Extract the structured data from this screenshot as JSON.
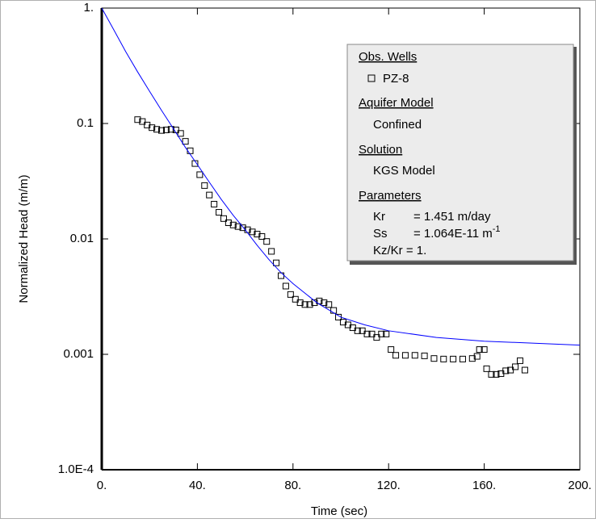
{
  "chart_data": {
    "type": "scatter",
    "xlabel": "Time (sec)",
    "ylabel": "Normalized Head (m/m)",
    "xlim": [
      0,
      200
    ],
    "xticks": [
      {
        "value": 0,
        "label": "0."
      },
      {
        "value": 40,
        "label": "40."
      },
      {
        "value": 80,
        "label": "80."
      },
      {
        "value": 120,
        "label": "120."
      },
      {
        "value": 160,
        "label": "160."
      },
      {
        "value": 200,
        "label": "200."
      }
    ],
    "ylim": [
      0.0001,
      1
    ],
    "yticks": [
      {
        "value": 0.0001,
        "label": "1.0E-4"
      },
      0.001,
      0.01,
      0.1,
      {
        "value": 1,
        "label": "1."
      }
    ],
    "log_y": true,
    "series": [
      {
        "name": "PZ-8",
        "color": "#000000",
        "marker": "square",
        "x": [
          15,
          17,
          19,
          21,
          23,
          25,
          27,
          29,
          31,
          33,
          35,
          37,
          39,
          41,
          43,
          45,
          47,
          49,
          51,
          53,
          55,
          57,
          59,
          61,
          63,
          65,
          67,
          69,
          71,
          73,
          75,
          77,
          79,
          81,
          83,
          85,
          87,
          89,
          91,
          93,
          95,
          97,
          99,
          101,
          103,
          105,
          107,
          109,
          111,
          113,
          115,
          117,
          119,
          121,
          123,
          127,
          131,
          135,
          139,
          143,
          147,
          151,
          155,
          157,
          158,
          160,
          161,
          163,
          165,
          167,
          169,
          171,
          173,
          175,
          177
        ],
        "values": [
          0.108,
          0.104,
          0.097,
          0.092,
          0.089,
          0.087,
          0.088,
          0.089,
          0.088,
          0.082,
          0.07,
          0.058,
          0.045,
          0.036,
          0.029,
          0.024,
          0.02,
          0.017,
          0.015,
          0.0138,
          0.0132,
          0.0128,
          0.0125,
          0.012,
          0.0115,
          0.011,
          0.0105,
          0.0095,
          0.0078,
          0.0062,
          0.0048,
          0.0039,
          0.0033,
          0.003,
          0.0028,
          0.0027,
          0.0027,
          0.0028,
          0.0029,
          0.0028,
          0.0027,
          0.0024,
          0.0021,
          0.0019,
          0.0018,
          0.0017,
          0.0016,
          0.0016,
          0.0015,
          0.0015,
          0.0014,
          0.0015,
          0.0015,
          0.0011,
          0.00098,
          0.00098,
          0.00098,
          0.00097,
          0.00092,
          0.00091,
          0.00091,
          0.00091,
          0.00092,
          0.00096,
          0.0011,
          0.0011,
          0.00075,
          0.00067,
          0.00067,
          0.00068,
          0.00072,
          0.00073,
          0.00078,
          0.00088,
          0.00073
        ]
      },
      {
        "color": "#0000ff",
        "marker": "none",
        "x": [
          0,
          5,
          10,
          15,
          20,
          25,
          30,
          35,
          40,
          45,
          50,
          55,
          60,
          65,
          70,
          75,
          80,
          90,
          100,
          110,
          120,
          140,
          160,
          180,
          200
        ],
        "values": [
          1.0,
          0.65,
          0.42,
          0.28,
          0.19,
          0.13,
          0.09,
          0.062,
          0.044,
          0.031,
          0.022,
          0.016,
          0.012,
          0.0088,
          0.0066,
          0.0051,
          0.0041,
          0.0028,
          0.0021,
          0.0018,
          0.0016,
          0.0014,
          0.0013,
          0.00125,
          0.0012
        ]
      }
    ],
    "info_panel": {
      "obs_wells_heading": "Obs. Wells",
      "aquifer_heading": "Aquifer Model",
      "aquifer": "Confined",
      "solution_heading": "Solution",
      "solution": "KGS Model",
      "parameters_heading": "Parameters",
      "kr_name": "Kr",
      "kr_value": "= 1.451 m/day",
      "ss_name": "Ss",
      "ss_value": "= 1.064E-11 m",
      "ss_exponent": "-1",
      "kz_kr": "Kz/Kr = 1."
    }
  }
}
